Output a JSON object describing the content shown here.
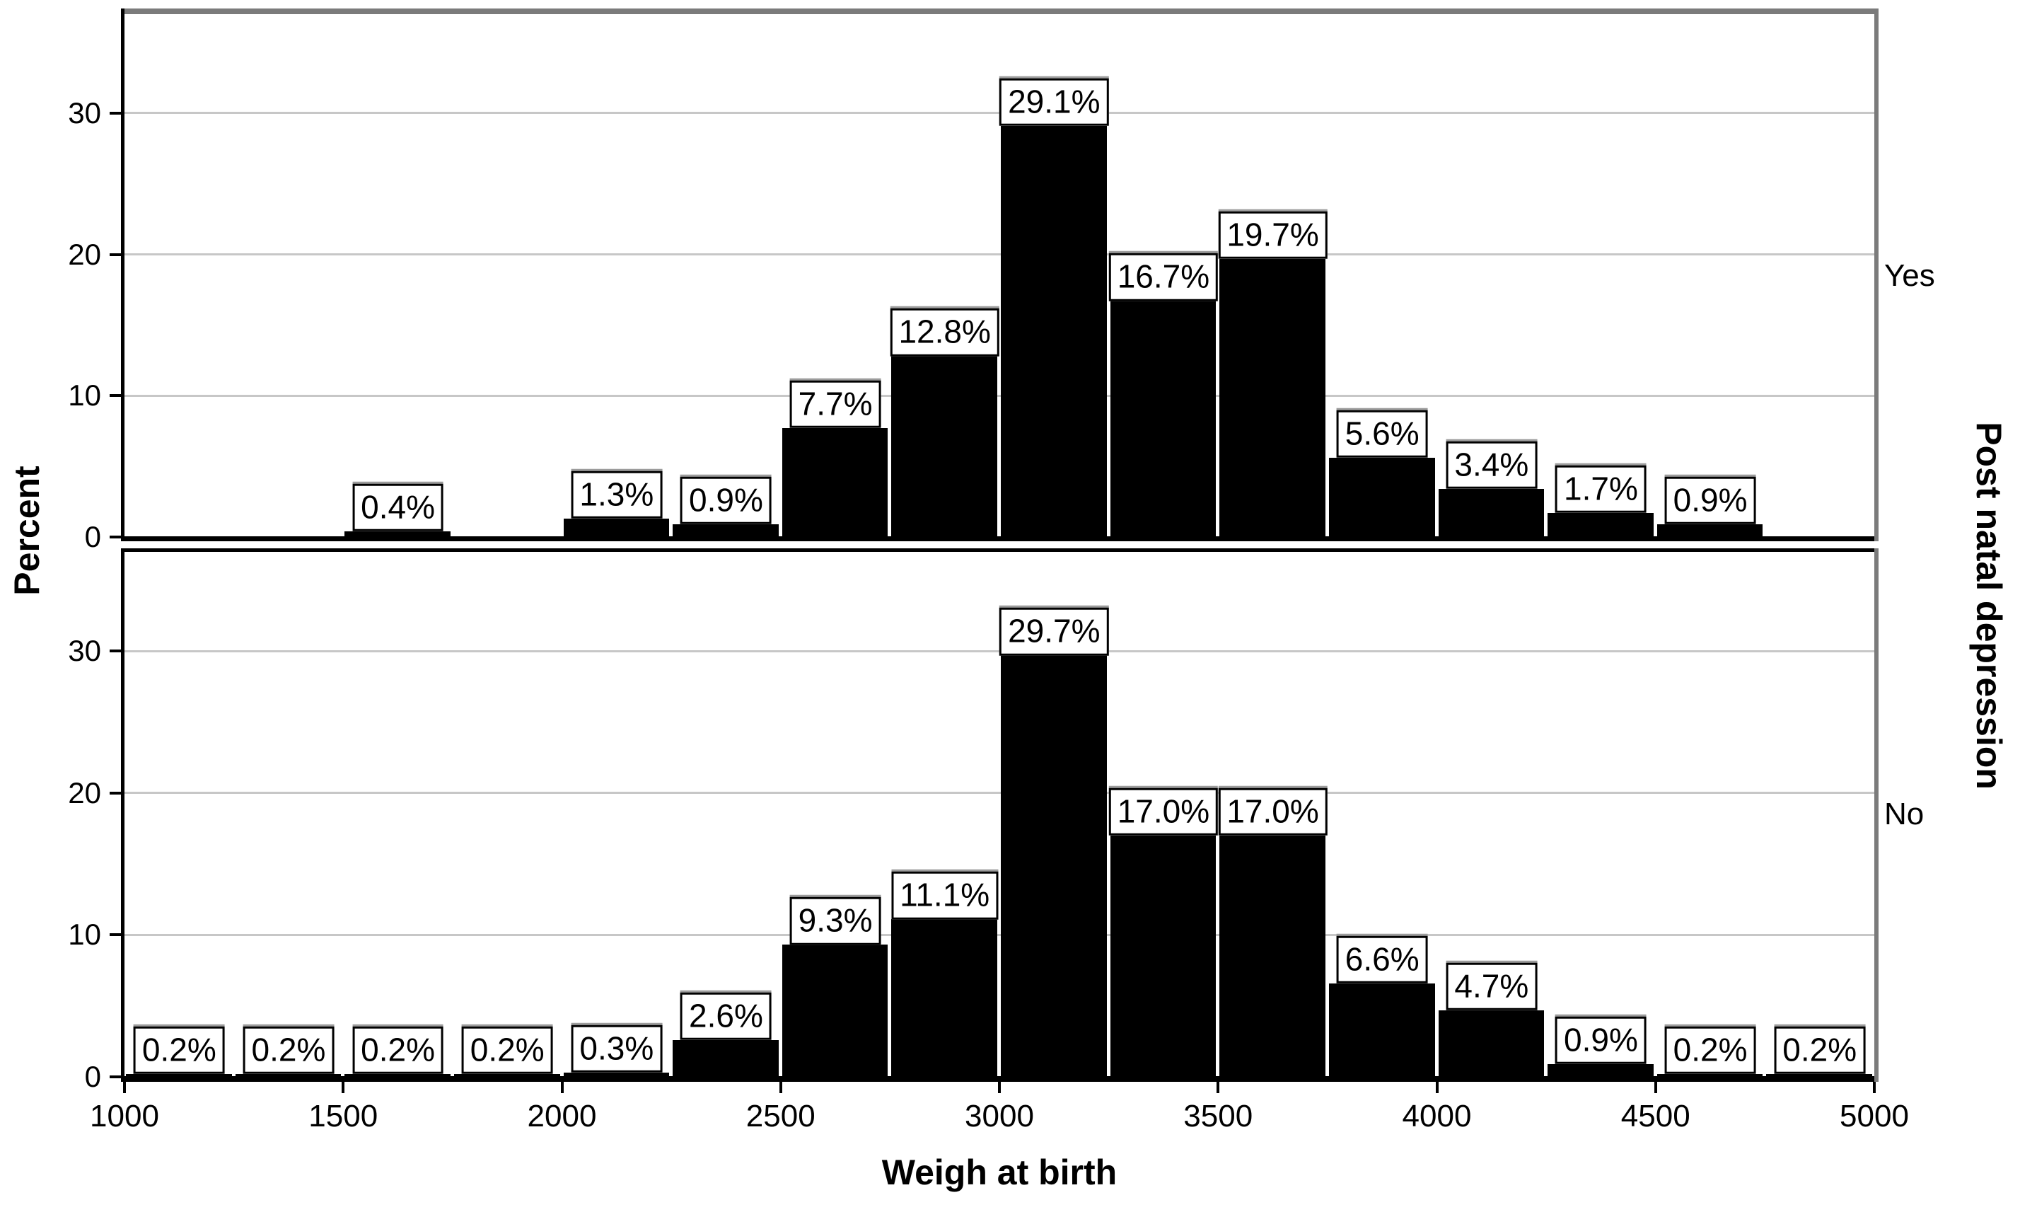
{
  "figure": {
    "y_axis_title": "Percent",
    "x_axis_title": "Weigh at birth",
    "panel_variable_title": "Post natal depression",
    "background_color": "#ffffff",
    "bar_color": "#000000",
    "gridline_color": "#c7c7c7",
    "frame_color": "#7b7b7b"
  },
  "chart_data": {
    "type": "bar",
    "subtype": "paneled-histogram",
    "title": "",
    "xlabel": "Weigh at birth",
    "ylabel": "Percent",
    "panel_label": "Post natal depression",
    "legend_position": "none",
    "grid": "horizontal",
    "x_range": [
      1000,
      5000
    ],
    "y_range": [
      0,
      37
    ],
    "bin_width": 250,
    "x_ticks": [
      1000,
      1500,
      2000,
      2500,
      3000,
      3500,
      4000,
      4500,
      5000
    ],
    "x_tick_labels": [
      "1000",
      "1500",
      "2000",
      "2500",
      "3000",
      "3500",
      "4000",
      "4500",
      "5000"
    ],
    "y_ticks": [
      0,
      10,
      20,
      30
    ],
    "y_tick_labels": [
      "0",
      "10",
      "20",
      "30"
    ],
    "gridlines": [
      10,
      20,
      30
    ],
    "panels": [
      {
        "category": "Yes",
        "bars": [
          {
            "bin_start": 1500,
            "bin_end": 1750,
            "value": 0.4,
            "label": "0.4%"
          },
          {
            "bin_start": 2000,
            "bin_end": 2250,
            "value": 1.3,
            "label": "1.3%"
          },
          {
            "bin_start": 2250,
            "bin_end": 2500,
            "value": 0.9,
            "label": "0.9%"
          },
          {
            "bin_start": 2500,
            "bin_end": 2750,
            "value": 7.7,
            "label": "7.7%"
          },
          {
            "bin_start": 2750,
            "bin_end": 3000,
            "value": 12.8,
            "label": "12.8%"
          },
          {
            "bin_start": 3000,
            "bin_end": 3250,
            "value": 29.1,
            "label": "29.1%"
          },
          {
            "bin_start": 3250,
            "bin_end": 3500,
            "value": 16.7,
            "label": "16.7%"
          },
          {
            "bin_start": 3500,
            "bin_end": 3750,
            "value": 19.7,
            "label": "19.7%"
          },
          {
            "bin_start": 3750,
            "bin_end": 4000,
            "value": 5.6,
            "label": "5.6%"
          },
          {
            "bin_start": 4000,
            "bin_end": 4250,
            "value": 3.4,
            "label": "3.4%"
          },
          {
            "bin_start": 4250,
            "bin_end": 4500,
            "value": 1.7,
            "label": "1.7%"
          },
          {
            "bin_start": 4500,
            "bin_end": 4750,
            "value": 0.9,
            "label": "0.9%"
          }
        ]
      },
      {
        "category": "No",
        "bars": [
          {
            "bin_start": 1000,
            "bin_end": 1250,
            "value": 0.2,
            "label": "0.2%"
          },
          {
            "bin_start": 1250,
            "bin_end": 1500,
            "value": 0.2,
            "label": "0.2%"
          },
          {
            "bin_start": 1500,
            "bin_end": 1750,
            "value": 0.2,
            "label": "0.2%"
          },
          {
            "bin_start": 1750,
            "bin_end": 2000,
            "value": 0.2,
            "label": "0.2%"
          },
          {
            "bin_start": 2000,
            "bin_end": 2250,
            "value": 0.3,
            "label": "0.3%"
          },
          {
            "bin_start": 2250,
            "bin_end": 2500,
            "value": 2.6,
            "label": "2.6%"
          },
          {
            "bin_start": 2500,
            "bin_end": 2750,
            "value": 9.3,
            "label": "9.3%"
          },
          {
            "bin_start": 2750,
            "bin_end": 3000,
            "value": 11.1,
            "label": "11.1%"
          },
          {
            "bin_start": 3000,
            "bin_end": 3250,
            "value": 29.7,
            "label": "29.7%"
          },
          {
            "bin_start": 3250,
            "bin_end": 3500,
            "value": 17.0,
            "label": "17.0%"
          },
          {
            "bin_start": 3500,
            "bin_end": 3750,
            "value": 17.0,
            "label": "17.0%"
          },
          {
            "bin_start": 3750,
            "bin_end": 4000,
            "value": 6.6,
            "label": "6.6%"
          },
          {
            "bin_start": 4000,
            "bin_end": 4250,
            "value": 4.7,
            "label": "4.7%"
          },
          {
            "bin_start": 4250,
            "bin_end": 4500,
            "value": 0.9,
            "label": "0.9%"
          },
          {
            "bin_start": 4500,
            "bin_end": 4750,
            "value": 0.2,
            "label": "0.2%"
          },
          {
            "bin_start": 4750,
            "bin_end": 5000,
            "value": 0.2,
            "label": "0.2%"
          }
        ]
      }
    ]
  }
}
